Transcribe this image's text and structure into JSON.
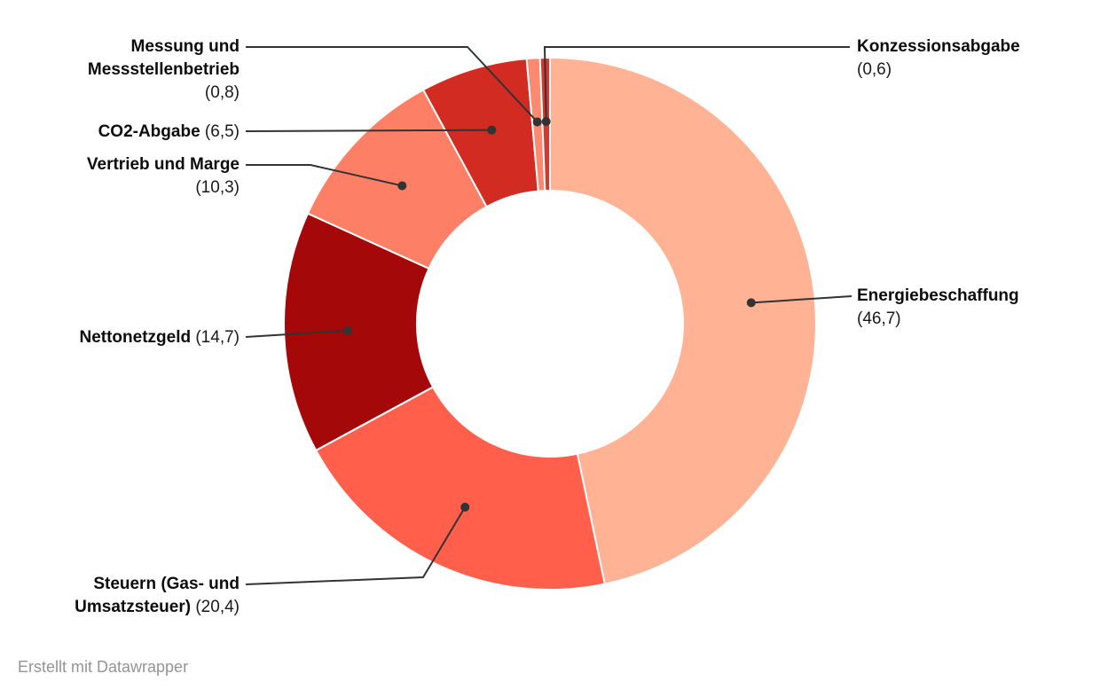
{
  "chart_data": {
    "type": "pie",
    "subtype": "donut",
    "title": "",
    "categories": [
      "Energiebeschaffung",
      "Steuern (Gas- und Umsatzsteuer)",
      "Nettonetzgeld",
      "Vertrieb und Marge",
      "CO2-Abgabe",
      "Messung und Messstellenbetrieb",
      "Konzessionsabgabe"
    ],
    "values": [
      46.7,
      20.4,
      14.7,
      10.3,
      6.5,
      0.8,
      0.6
    ],
    "value_labels": [
      "(46,7)",
      "(20,4)",
      "(14,7)",
      "(10,3)",
      "(6,5)",
      "(0,8)",
      "(0,6)"
    ],
    "colors": [
      "#FFB294",
      "#FF5F4B",
      "#A40808",
      "#FD8066",
      "#D22B22",
      "#FB8A70",
      "#D6382D"
    ],
    "total": 100,
    "direction": "clockwise",
    "start_angle_deg": 0,
    "inner_radius_ratio": 0.5,
    "leader_line_color": "#333333",
    "legend_position": "callout-labels"
  },
  "footer": {
    "credit": "Erstellt mit Datawrapper"
  }
}
